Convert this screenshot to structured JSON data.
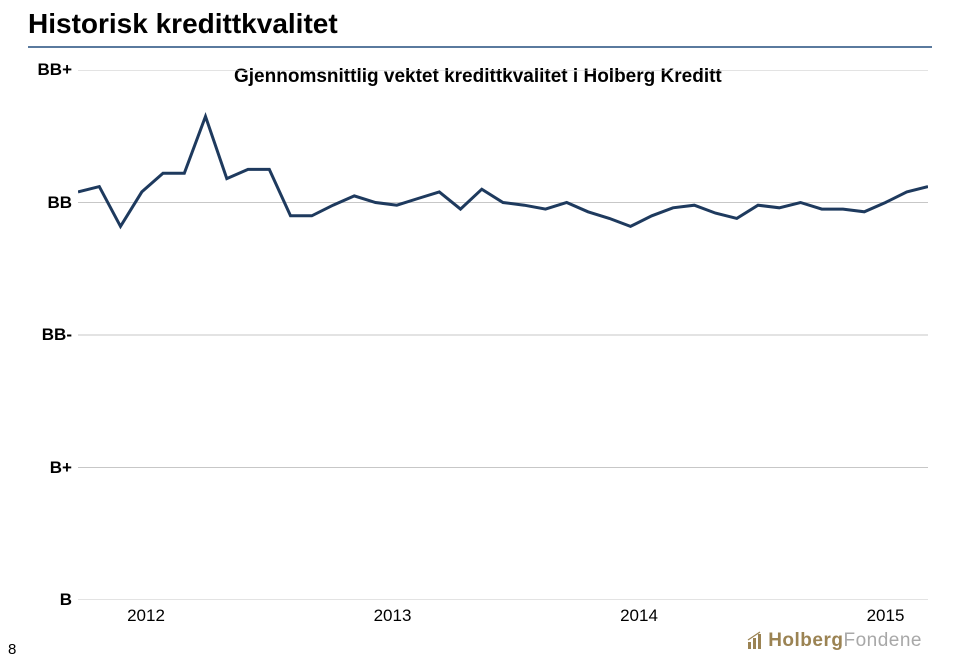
{
  "title": "Historisk kredittkvalitet",
  "chart": {
    "type": "line",
    "subtitle": "Gjennomsnittlig vektet kredittkvalitet i Holberg Kreditt",
    "y_ticks": [
      "BB+",
      "BB",
      "BB-",
      "B+",
      "B"
    ],
    "x_ticks": [
      "2012",
      "2013",
      "2014",
      "2015"
    ],
    "x_tick_positions": [
      0.08,
      0.37,
      0.66,
      0.95
    ],
    "line_width": 3,
    "colors": {
      "line": "#1e3a5e",
      "background": "#ffffff",
      "grid": "#c7c7c7",
      "title_rule": "#5a7a9e",
      "text": "#000000"
    },
    "series": [
      {
        "x": 0.0,
        "y": 3.08
      },
      {
        "x": 0.025,
        "y": 3.12
      },
      {
        "x": 0.05,
        "y": 2.82
      },
      {
        "x": 0.075,
        "y": 3.08
      },
      {
        "x": 0.1,
        "y": 3.22
      },
      {
        "x": 0.125,
        "y": 3.22
      },
      {
        "x": 0.15,
        "y": 3.65
      },
      {
        "x": 0.175,
        "y": 3.18
      },
      {
        "x": 0.2,
        "y": 3.25
      },
      {
        "x": 0.225,
        "y": 3.25
      },
      {
        "x": 0.25,
        "y": 2.9
      },
      {
        "x": 0.275,
        "y": 2.9
      },
      {
        "x": 0.3,
        "y": 2.98
      },
      {
        "x": 0.325,
        "y": 3.05
      },
      {
        "x": 0.35,
        "y": 3.0
      },
      {
        "x": 0.375,
        "y": 2.98
      },
      {
        "x": 0.4,
        "y": 3.03
      },
      {
        "x": 0.425,
        "y": 3.08
      },
      {
        "x": 0.45,
        "y": 2.95
      },
      {
        "x": 0.475,
        "y": 3.1
      },
      {
        "x": 0.5,
        "y": 3.0
      },
      {
        "x": 0.525,
        "y": 2.98
      },
      {
        "x": 0.55,
        "y": 2.95
      },
      {
        "x": 0.575,
        "y": 3.0
      },
      {
        "x": 0.6,
        "y": 2.93
      },
      {
        "x": 0.625,
        "y": 2.88
      },
      {
        "x": 0.65,
        "y": 2.82
      },
      {
        "x": 0.675,
        "y": 2.9
      },
      {
        "x": 0.7,
        "y": 2.96
      },
      {
        "x": 0.725,
        "y": 2.98
      },
      {
        "x": 0.75,
        "y": 2.92
      },
      {
        "x": 0.775,
        "y": 2.88
      },
      {
        "x": 0.8,
        "y": 2.98
      },
      {
        "x": 0.825,
        "y": 2.96
      },
      {
        "x": 0.85,
        "y": 3.0
      },
      {
        "x": 0.875,
        "y": 2.95
      },
      {
        "x": 0.9,
        "y": 2.95
      },
      {
        "x": 0.925,
        "y": 2.93
      },
      {
        "x": 0.95,
        "y": 3.0
      },
      {
        "x": 0.975,
        "y": 3.08
      },
      {
        "x": 1.0,
        "y": 3.12
      }
    ]
  },
  "page_number": "8",
  "logo": {
    "part1": "Holberg",
    "part2": "Fondene"
  }
}
